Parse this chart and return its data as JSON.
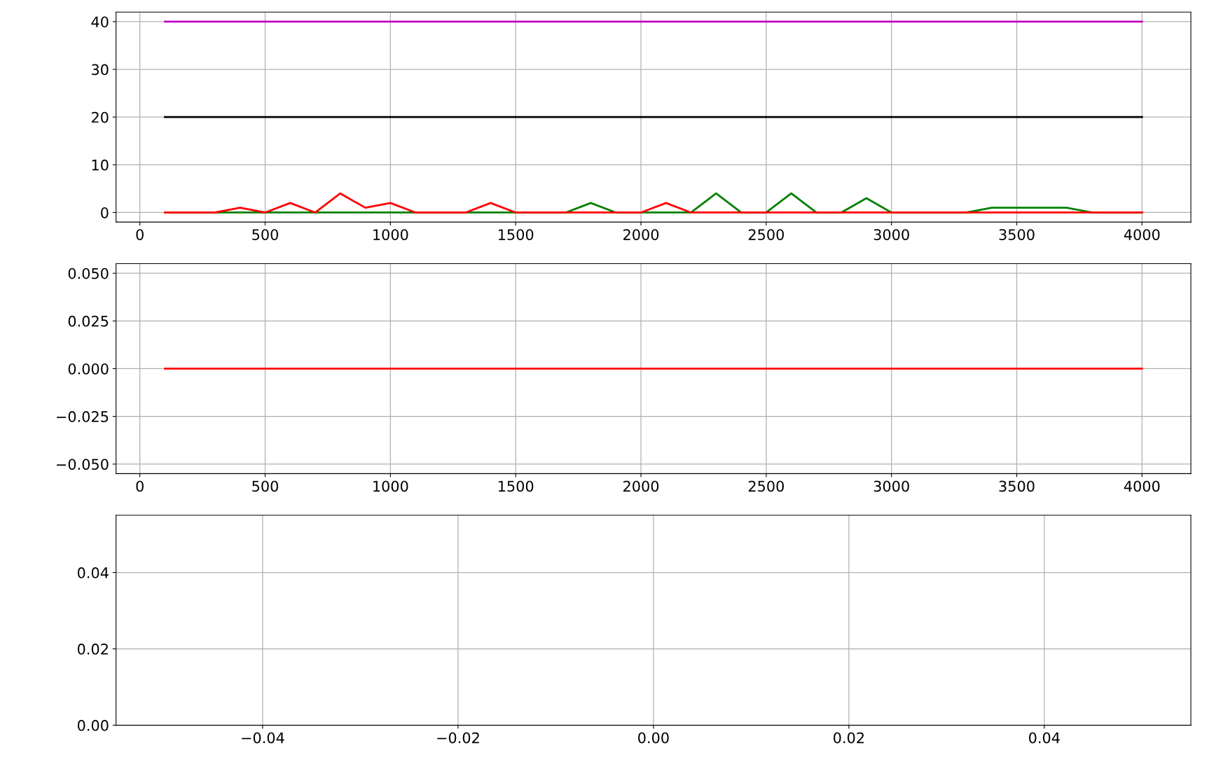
{
  "chart_data": [
    {
      "type": "line",
      "x": [
        100,
        200,
        300,
        400,
        500,
        600,
        700,
        800,
        900,
        1000,
        1100,
        1200,
        1300,
        1400,
        1500,
        1600,
        1700,
        1800,
        1900,
        2000,
        2100,
        2200,
        2300,
        2400,
        2500,
        2600,
        2700,
        2800,
        2900,
        3000,
        3100,
        3200,
        3300,
        3400,
        3500,
        3600,
        3700,
        3800,
        3900,
        4000
      ],
      "series": [
        {
          "color": "#bf00bf",
          "values": [
            40,
            40,
            40,
            40,
            40,
            40,
            40,
            40,
            40,
            40,
            40,
            40,
            40,
            40,
            40,
            40,
            40,
            40,
            40,
            40,
            40,
            40,
            40,
            40,
            40,
            40,
            40,
            40,
            40,
            40,
            40,
            40,
            40,
            40,
            40,
            40,
            40,
            40,
            40,
            40
          ]
        },
        {
          "color": "#000000",
          "values": [
            20,
            20,
            20,
            20,
            20,
            20,
            20,
            20,
            20,
            20,
            20,
            20,
            20,
            20,
            20,
            20,
            20,
            20,
            20,
            20,
            20,
            20,
            20,
            20,
            20,
            20,
            20,
            20,
            20,
            20,
            20,
            20,
            20,
            20,
            20,
            20,
            20,
            20,
            20,
            20
          ]
        },
        {
          "color": "#008000",
          "values": [
            0,
            0,
            0,
            0,
            0,
            0,
            0,
            0,
            0,
            0,
            0,
            0,
            0,
            0,
            0,
            0,
            0,
            2,
            0,
            0,
            0,
            0,
            4,
            0,
            0,
            4,
            0,
            0,
            3,
            0,
            0,
            0,
            0,
            1,
            1,
            1,
            1,
            0,
            0,
            0
          ]
        },
        {
          "color": "#ff0000",
          "values": [
            0,
            0,
            0,
            1,
            0,
            2,
            0,
            4,
            1,
            2,
            0,
            0,
            0,
            2,
            0,
            0,
            0,
            0,
            0,
            0,
            2,
            0,
            0,
            0,
            0,
            0,
            0,
            0,
            0,
            0,
            0,
            0,
            0,
            0,
            0,
            0,
            0,
            0,
            0,
            0
          ]
        }
      ],
      "xlim": [
        -95,
        4195
      ],
      "xticks": [
        0,
        500,
        1000,
        1500,
        2000,
        2500,
        3000,
        3500,
        4000
      ],
      "ylim": [
        -2,
        42
      ],
      "yticks": [
        0,
        10,
        20,
        30,
        40
      ],
      "grid": true
    },
    {
      "type": "line",
      "x": [
        100,
        200,
        300,
        400,
        500,
        600,
        700,
        800,
        900,
        1000,
        1100,
        1200,
        1300,
        1400,
        1500,
        1600,
        1700,
        1800,
        1900,
        2000,
        2100,
        2200,
        2300,
        2400,
        2500,
        2600,
        2700,
        2800,
        2900,
        3000,
        3100,
        3200,
        3300,
        3400,
        3500,
        3600,
        3700,
        3800,
        3900,
        4000
      ],
      "series": [
        {
          "color": "#ff0000",
          "values": [
            0,
            0,
            0,
            0,
            0,
            0,
            0,
            0,
            0,
            0,
            0,
            0,
            0,
            0,
            0,
            0,
            0,
            0,
            0,
            0,
            0,
            0,
            0,
            0,
            0,
            0,
            0,
            0,
            0,
            0,
            0,
            0,
            0,
            0,
            0,
            0,
            0,
            0,
            0,
            0
          ]
        }
      ],
      "xlim": [
        -95,
        4195
      ],
      "xticks": [
        0,
        500,
        1000,
        1500,
        2000,
        2500,
        3000,
        3500,
        4000
      ],
      "ylim": [
        -0.055,
        0.055
      ],
      "yticks": [
        {
          "value": 0.05,
          "label": "0.050"
        },
        {
          "value": 0.025,
          "label": "0.025"
        },
        {
          "value": 0,
          "label": "0.000"
        },
        {
          "value": -0.025,
          "label": "−0.025"
        },
        {
          "value": -0.05,
          "label": "−0.050"
        }
      ],
      "grid": true
    },
    {
      "type": "line",
      "xlim": [
        -0.055,
        0.055
      ],
      "xticks": [
        {
          "value": -0.04,
          "label": "−0.04"
        },
        {
          "value": -0.02,
          "label": "−0.02"
        },
        {
          "value": 0,
          "label": "0.00"
        },
        {
          "value": 0.02,
          "label": "0.02"
        },
        {
          "value": 0.04,
          "label": "0.04"
        }
      ],
      "ylim": [
        0,
        0.055
      ],
      "yticks": [
        {
          "value": 0,
          "label": "0.00"
        },
        {
          "value": 0.02,
          "label": "0.02"
        },
        {
          "value": 0.04,
          "label": "0.04"
        }
      ],
      "grid": true
    }
  ]
}
